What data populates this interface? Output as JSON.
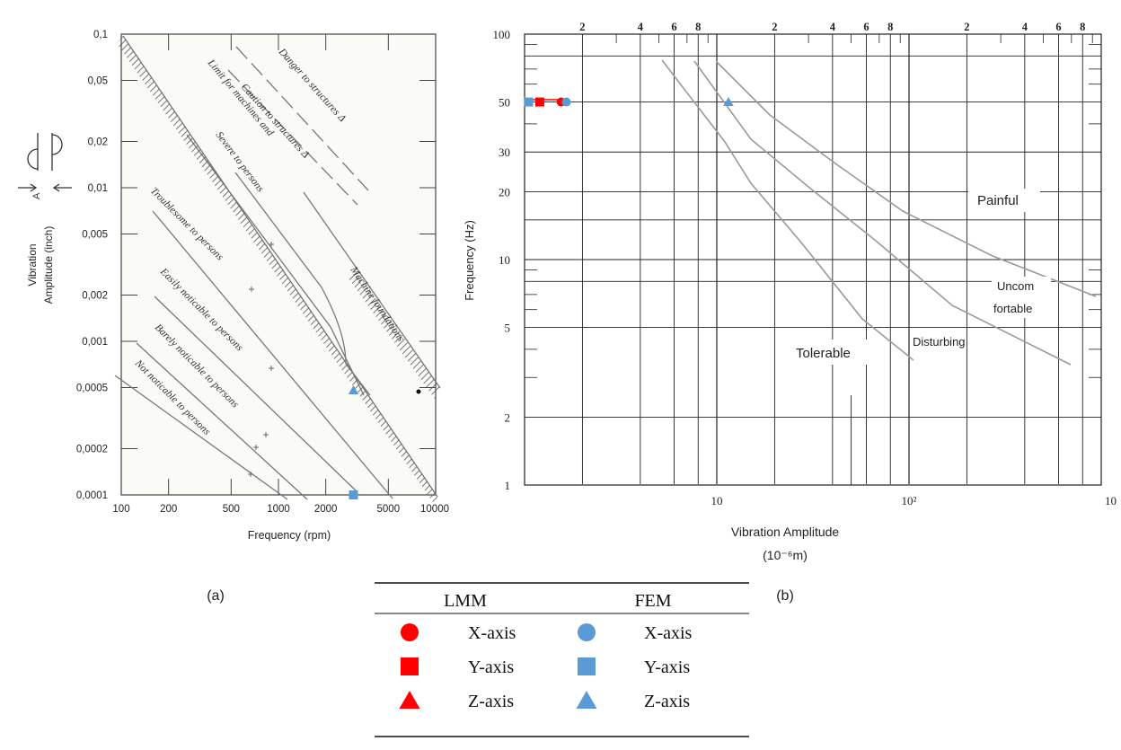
{
  "panels": {
    "a_label": "(a)",
    "b_label": "(b)"
  },
  "chart_data": [
    {
      "type": "line",
      "xlabel": "Frequency (rpm)",
      "ylabel_line1": "Vibration",
      "ylabel_line2": "Amplitude (inch)",
      "xscale": "log",
      "yscale": "log",
      "xlim": [
        100,
        10000
      ],
      "ylim": [
        0.0001,
        0.1
      ],
      "xticks": [
        "100",
        "200",
        "500",
        "1000",
        "2000",
        "5000",
        "10000"
      ],
      "yticks": [
        "0,1",
        "0,05",
        "0,02",
        "0,01",
        "0,005",
        "0,002",
        "0,001",
        "0,0005",
        "0,0002",
        "0,0001"
      ],
      "grid": false,
      "zone_labels": [
        "Danger to structures Δ",
        "Caution to structures Δ",
        "Limit for machines and",
        "Severe to persons",
        "Troublesome to persons",
        "Easily noticable to persons",
        "Barely noticable to persons",
        "Not noticable to persons",
        "Machine foundations"
      ],
      "points": [
        {
          "series": "FEM Z-axis",
          "x": 3000,
          "y": 0.00048,
          "marker": "triangle",
          "color": "#5b9bd5"
        },
        {
          "series": "FEM Y-axis",
          "x": 3000,
          "y": 0.0001,
          "marker": "square",
          "color": "#5b9bd5"
        }
      ]
    },
    {
      "type": "line",
      "xlabel_line1": "Vibration Amplitude",
      "xlabel_line2": "(10⁻⁶m)",
      "ylabel": "Frequency (Hz)",
      "xscale": "log",
      "yscale": "log",
      "xlim": [
        1,
        1000
      ],
      "ylim": [
        1,
        100
      ],
      "xticks_bottom": [
        "10",
        "10²",
        "10"
      ],
      "xticks_top": [
        "2",
        "4",
        "6",
        "8",
        "2",
        "4",
        "6",
        "8",
        "2",
        "4",
        "6",
        "8"
      ],
      "yticks": [
        "100",
        "50",
        "30",
        "20",
        "10",
        "5",
        "2",
        "1"
      ],
      "grid": true,
      "zone_labels": [
        "Painful",
        "Uncom",
        "fortable",
        "Disturbing",
        "Tolerable"
      ],
      "points": [
        {
          "series": "FEM Y-axis",
          "x": 1.05,
          "y": 50,
          "marker": "square",
          "color": "#5b9bd5"
        },
        {
          "series": "LMM Y-axis",
          "x": 1.2,
          "y": 50,
          "marker": "square",
          "color": "#ff0000"
        },
        {
          "series": "LMM X-axis",
          "x": 1.55,
          "y": 50,
          "marker": "circle",
          "color": "#ff0000"
        },
        {
          "series": "FEM X-axis",
          "x": 1.65,
          "y": 50,
          "marker": "circle",
          "color": "#5b9bd5"
        },
        {
          "series": "FEM Z-axis",
          "x": 11.5,
          "y": 50,
          "marker": "triangle",
          "color": "#5b9bd5"
        }
      ]
    }
  ],
  "legend_table": {
    "headers": [
      "LMM",
      "FEM"
    ],
    "rows": [
      {
        "lmm_marker": "circle",
        "lmm_label": "X-axis",
        "fem_marker": "circle",
        "fem_label": "X-axis"
      },
      {
        "lmm_marker": "square",
        "lmm_label": "Y-axis",
        "fem_marker": "square",
        "fem_label": "Y-axis"
      },
      {
        "lmm_marker": "triangle",
        "lmm_label": "Z-axis",
        "fem_marker": "triangle",
        "fem_label": "Z-axis"
      }
    ],
    "lmm_color": "#ff0000",
    "fem_color": "#5b9bd5"
  }
}
